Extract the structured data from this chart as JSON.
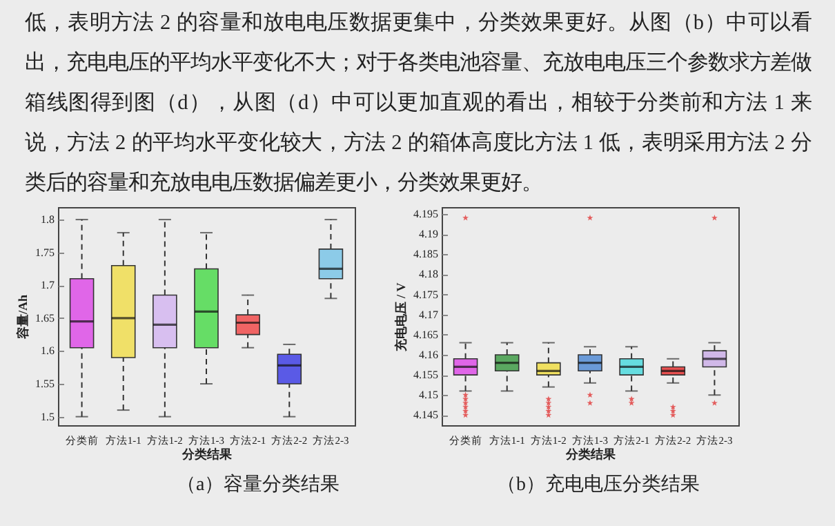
{
  "chart_data": [
    {
      "type": "box",
      "annotations": [
        "低，表明方法 2 的容量和放电电压数据更集中，分类效果更好。从图（b）中可以看出，充电电压的平均水平变化不大；对于各类电池容量、充放电电压三个参数求方差做箱线图得到图（d），从图（d）中可以更加直观的看出，相较于分类前和方法 1 来说，方法 2 的平均水平变化较大，方法 2 的箱体高度比方法 1 低，表明采用方法 2 分类后的容量和充放电电压数据偏差更小，分类效果更好。",
        "（a）容量分类结果"
      ],
      "xlabel": "分类结果",
      "ylabel": "容量/Ah",
      "categories": [
        "分类前",
        "方法1-1",
        "方法1-2",
        "方法1-3",
        "方法2-1",
        "方法2-2",
        "方法2-3"
      ],
      "colors": [
        "#e066e8",
        "#f0e068",
        "#d8bff0",
        "#66dd66",
        "#f06464",
        "#5a5ae6",
        "#8ccbe8"
      ],
      "boxes": [
        {
          "low": 1.5,
          "q1": 1.605,
          "median": 1.645,
          "q3": 1.71,
          "high": 1.8
        },
        {
          "low": 1.51,
          "q1": 1.59,
          "median": 1.65,
          "q3": 1.73,
          "high": 1.78
        },
        {
          "low": 1.5,
          "q1": 1.605,
          "median": 1.64,
          "q3": 1.685,
          "high": 1.8
        },
        {
          "low": 1.55,
          "q1": 1.605,
          "median": 1.66,
          "q3": 1.725,
          "high": 1.78
        },
        {
          "low": 1.605,
          "q1": 1.625,
          "median": 1.643,
          "q3": 1.655,
          "high": 1.685
        },
        {
          "low": 1.5,
          "q1": 1.55,
          "median": 1.578,
          "q3": 1.595,
          "high": 1.61
        },
        {
          "low": 1.68,
          "q1": 1.71,
          "median": 1.725,
          "q3": 1.755,
          "high": 1.8
        }
      ],
      "ylim": [
        1.487,
        1.819
      ],
      "yticks": [
        1.5,
        1.55,
        1.6,
        1.65,
        1.7,
        1.75,
        1.8
      ]
    },
    {
      "type": "box",
      "annotations": [
        "（b）充电电压分类结果"
      ],
      "xlabel": "分类结果",
      "ylabel": "充电电压 / V",
      "marker": "star",
      "categories": [
        "分类前",
        "方法1-1",
        "方法1-2",
        "方法1-3",
        "方法2-1",
        "方法2-2",
        "方法2-3"
      ],
      "colors": [
        "#e066e8",
        "#5aa860",
        "#f0e060",
        "#6a9ad8",
        "#66dde0",
        "#e85050",
        "#d0b8e8"
      ],
      "boxes": [
        {
          "low": 4.151,
          "q1": 4.155,
          "median": 4.157,
          "q3": 4.159,
          "high": 4.163,
          "outliers": [
            4.194,
            4.15,
            4.149,
            4.148,
            4.147,
            4.146,
            4.145
          ]
        },
        {
          "low": 4.151,
          "q1": 4.156,
          "median": 4.158,
          "q3": 4.16,
          "high": 4.163
        },
        {
          "low": 4.152,
          "q1": 4.155,
          "median": 4.156,
          "q3": 4.158,
          "high": 4.163,
          "outliers": [
            4.149,
            4.148,
            4.147,
            4.146,
            4.145
          ]
        },
        {
          "low": 4.153,
          "q1": 4.156,
          "median": 4.158,
          "q3": 4.16,
          "high": 4.162,
          "outliers": [
            4.194,
            4.15,
            4.148
          ]
        },
        {
          "low": 4.151,
          "q1": 4.155,
          "median": 4.157,
          "q3": 4.159,
          "high": 4.162,
          "outliers": [
            4.149,
            4.148
          ]
        },
        {
          "low": 4.153,
          "q1": 4.155,
          "median": 4.156,
          "q3": 4.157,
          "high": 4.159,
          "outliers": [
            4.147,
            4.146,
            4.145
          ]
        },
        {
          "low": 4.15,
          "q1": 4.157,
          "median": 4.159,
          "q3": 4.161,
          "high": 4.163,
          "outliers": [
            4.194,
            4.148
          ]
        }
      ],
      "ylim": [
        4.1425,
        4.1967
      ],
      "yticks": [
        4.145,
        4.15,
        4.155,
        4.16,
        4.165,
        4.17,
        4.175,
        4.18,
        4.185,
        4.19,
        4.195
      ]
    }
  ]
}
